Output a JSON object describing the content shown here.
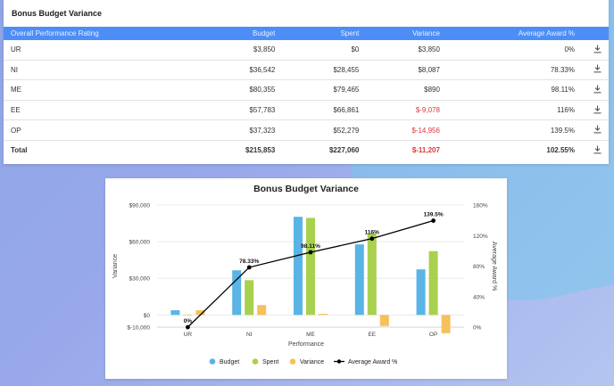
{
  "panel": {
    "title": "Bonus Budget Variance",
    "columns": [
      "Overall Performance Rating",
      "Budget",
      "Spent",
      "Variance",
      "Average Award %"
    ],
    "rows": [
      {
        "rating": "UR",
        "budget": "$3,850",
        "spent": "$0",
        "variance": "$3,850",
        "award": "0%",
        "negative": false
      },
      {
        "rating": "NI",
        "budget": "$36,542",
        "spent": "$28,455",
        "variance": "$8,087",
        "award": "78.33%",
        "negative": false
      },
      {
        "rating": "ME",
        "budget": "$80,355",
        "spent": "$79,465",
        "variance": "$890",
        "award": "98.11%",
        "negative": false
      },
      {
        "rating": "EE",
        "budget": "$57,783",
        "spent": "$66,861",
        "variance": "$-9,078",
        "award": "116%",
        "negative": true
      },
      {
        "rating": "OP",
        "budget": "$37,323",
        "spent": "$52,279",
        "variance": "$-14,956",
        "award": "139.5%",
        "negative": true
      }
    ],
    "total": {
      "rating": "Total",
      "budget": "$215,853",
      "spent": "$227,060",
      "variance": "$-11,207",
      "award": "102.55%",
      "negative": true
    },
    "download_icon": "download-icon"
  },
  "colors": {
    "header_bg": "#4d8df6",
    "negative_text": "#e0353b",
    "budget": "#5ab4e5",
    "spent": "#a8d14f",
    "variance": "#f6c05c",
    "average": "#000000"
  },
  "chart_data": {
    "type": "bar",
    "title": "Bonus Budget Variance",
    "xlabel": "Performance",
    "ylabel": "Variance",
    "y2label": "Average Award %",
    "categories": [
      "UR",
      "NI",
      "ME",
      "EE",
      "OP"
    ],
    "ylim": [
      -10000,
      90000
    ],
    "y_ticks": [
      -10000,
      0,
      30000,
      60000,
      90000
    ],
    "y_tick_labels": [
      "$-10,000",
      "$0",
      "$30,000",
      "$60,000",
      "$90,000"
    ],
    "y2lim": [
      0,
      160
    ],
    "y2_ticks": [
      0,
      40,
      80,
      120,
      160
    ],
    "y2_tick_labels": [
      "0%",
      "40%",
      "80%",
      "120%",
      "160%"
    ],
    "series": [
      {
        "name": "Budget",
        "type": "bar",
        "color": "#5ab4e5",
        "values": [
          3850,
          36542,
          80355,
          57783,
          37323
        ]
      },
      {
        "name": "Spent",
        "type": "bar",
        "color": "#a8d14f",
        "values": [
          0,
          28455,
          79465,
          66861,
          52279
        ]
      },
      {
        "name": "Variance",
        "type": "bar",
        "color": "#f6c05c",
        "values": [
          3850,
          8087,
          890,
          -9078,
          -14956
        ]
      },
      {
        "name": "Average Award %",
        "type": "line",
        "axis": "y2",
        "color": "#000000",
        "values": [
          0,
          78.33,
          98.11,
          116,
          139.5
        ],
        "labels": [
          "0%",
          "78.33%",
          "98.11%",
          "116%",
          "139.5%"
        ]
      }
    ],
    "grid": true,
    "legend_position": "bottom"
  }
}
